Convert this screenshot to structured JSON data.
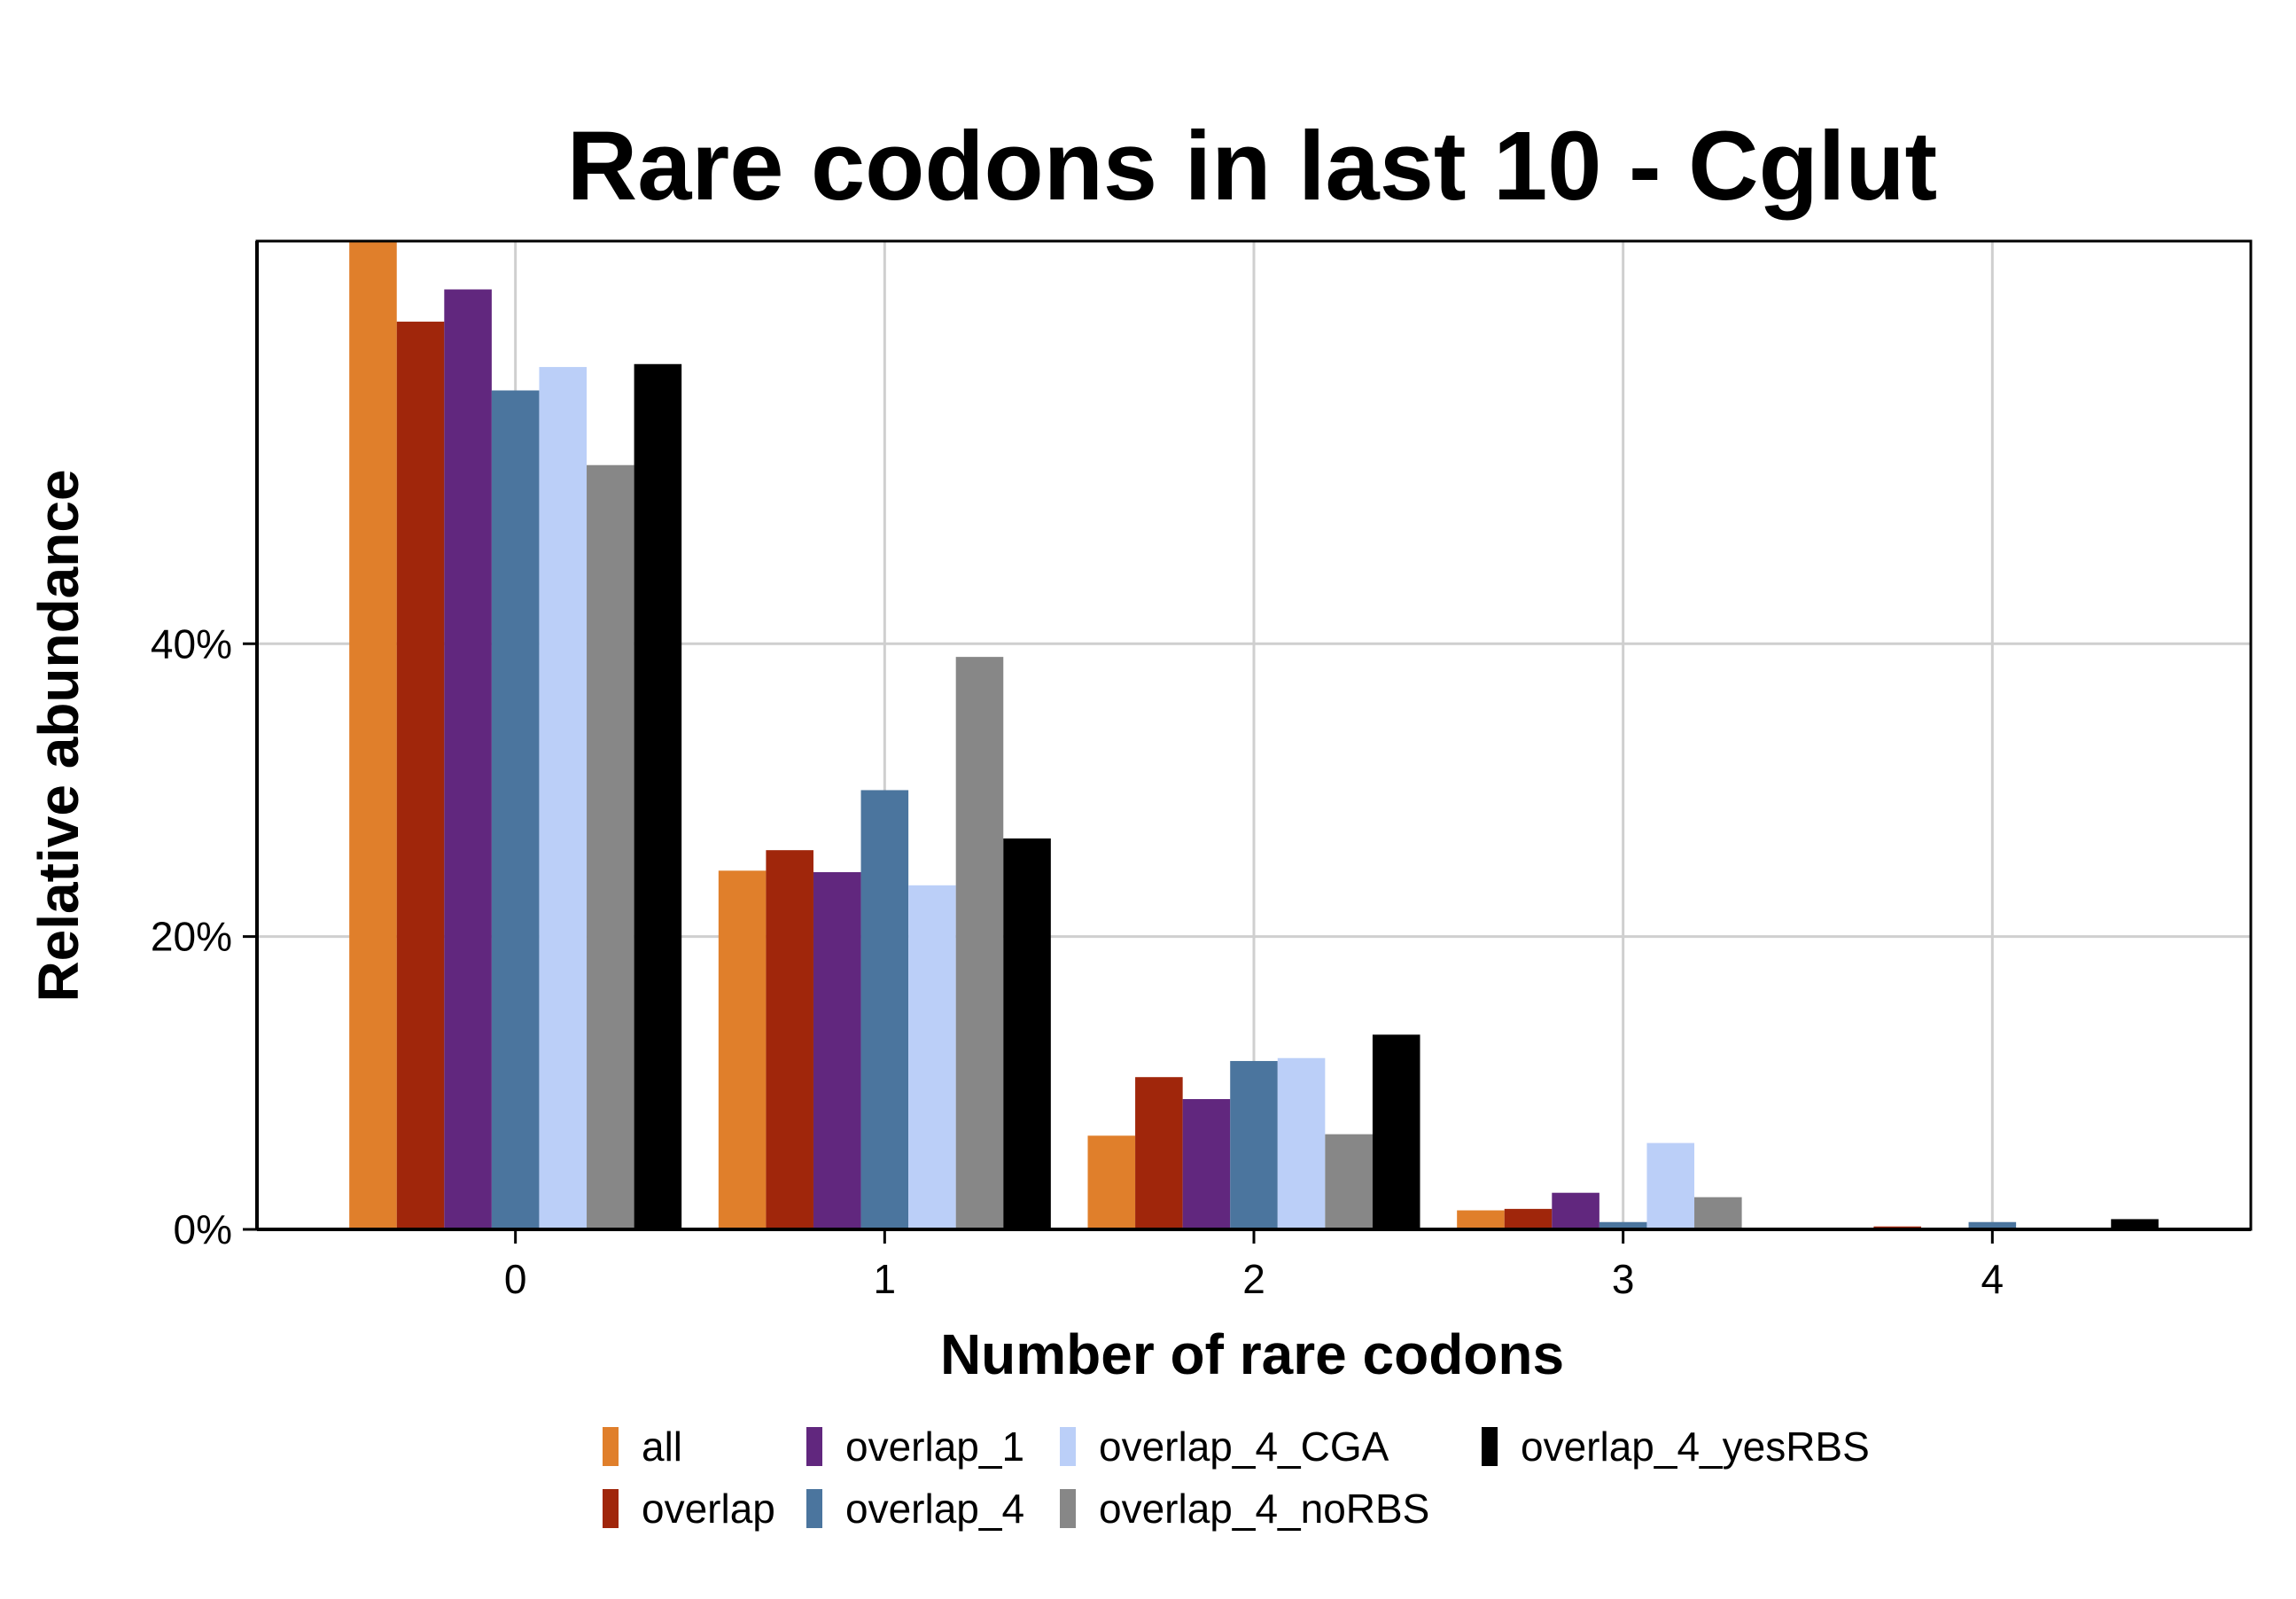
{
  "chart_data": {
    "type": "bar",
    "title": "Rare codons in last 10 - Cglut",
    "xlabel": "Number of rare codons",
    "ylabel": "Relative abundance",
    "categories": [
      "0",
      "1",
      "2",
      "3",
      "4"
    ],
    "ylim": [
      0,
      67.5
    ],
    "yticks": [
      0,
      20,
      40
    ],
    "ytick_labels": [
      "0%",
      "20%",
      "40%"
    ],
    "grid": true,
    "legend_position": "bottom",
    "series": [
      {
        "name": "all",
        "color": "#E07F2B",
        "values": [
          67.5,
          24.5,
          6.4,
          1.3,
          0.0
        ]
      },
      {
        "name": "overlap",
        "color": "#A0260B",
        "values": [
          62.0,
          25.9,
          10.4,
          1.4,
          0.2
        ]
      },
      {
        "name": "overlap_1",
        "color": "#61277E",
        "values": [
          64.2,
          24.4,
          8.9,
          2.5,
          0.0
        ]
      },
      {
        "name": "overlap_4",
        "color": "#4B759E",
        "values": [
          57.3,
          30.0,
          11.5,
          0.5,
          0.5
        ]
      },
      {
        "name": "overlap_4_CGA",
        "color": "#BBCFF8",
        "values": [
          58.9,
          23.5,
          11.7,
          5.9,
          0.0
        ]
      },
      {
        "name": "overlap_4_noRBS",
        "color": "#878787",
        "values": [
          52.2,
          39.1,
          6.5,
          2.2,
          0.0
        ]
      },
      {
        "name": "overlap_4_yesRBS",
        "color": "#000000",
        "values": [
          59.1,
          26.7,
          13.3,
          0.0,
          0.7
        ]
      }
    ]
  }
}
